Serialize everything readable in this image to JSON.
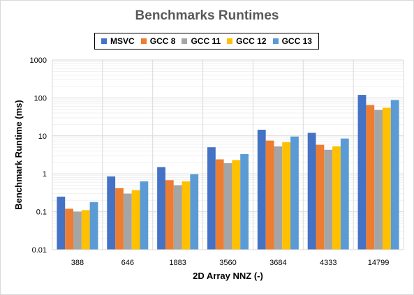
{
  "chart_data": {
    "type": "bar",
    "title": "Benchmarks Runtimes",
    "xlabel": "2D Array NNZ (-)",
    "ylabel": "Benchmark Runtime (ms)",
    "yscale": "log",
    "ylim": [
      0.01,
      1000
    ],
    "ytick_labels": [
      "0.01",
      "0.1",
      "1",
      "10",
      "100",
      "1000"
    ],
    "ytick_values": [
      0.01,
      0.1,
      1,
      10,
      100,
      1000
    ],
    "grid": true,
    "legend_position": "top",
    "categories": [
      "388",
      "646",
      "1883",
      "3560",
      "3684",
      "4333",
      "14799"
    ],
    "series": [
      {
        "name": "MSVC",
        "color": "#4472C4",
        "values": [
          0.25,
          0.85,
          1.5,
          5.0,
          14.5,
          12.0,
          120
        ]
      },
      {
        "name": "GCC 8",
        "color": "#ED7D31",
        "values": [
          0.12,
          0.42,
          0.68,
          2.4,
          7.5,
          5.8,
          65
        ]
      },
      {
        "name": "GCC 11",
        "color": "#A5A5A5",
        "values": [
          0.1,
          0.3,
          0.5,
          1.9,
          5.3,
          4.3,
          48
        ]
      },
      {
        "name": "GCC 12",
        "color": "#FFC000",
        "values": [
          0.11,
          0.37,
          0.63,
          2.3,
          6.8,
          5.3,
          55
        ]
      },
      {
        "name": "GCC 13",
        "color": "#5B9BD5",
        "values": [
          0.18,
          0.63,
          0.97,
          3.3,
          9.6,
          8.5,
          88
        ]
      }
    ]
  }
}
